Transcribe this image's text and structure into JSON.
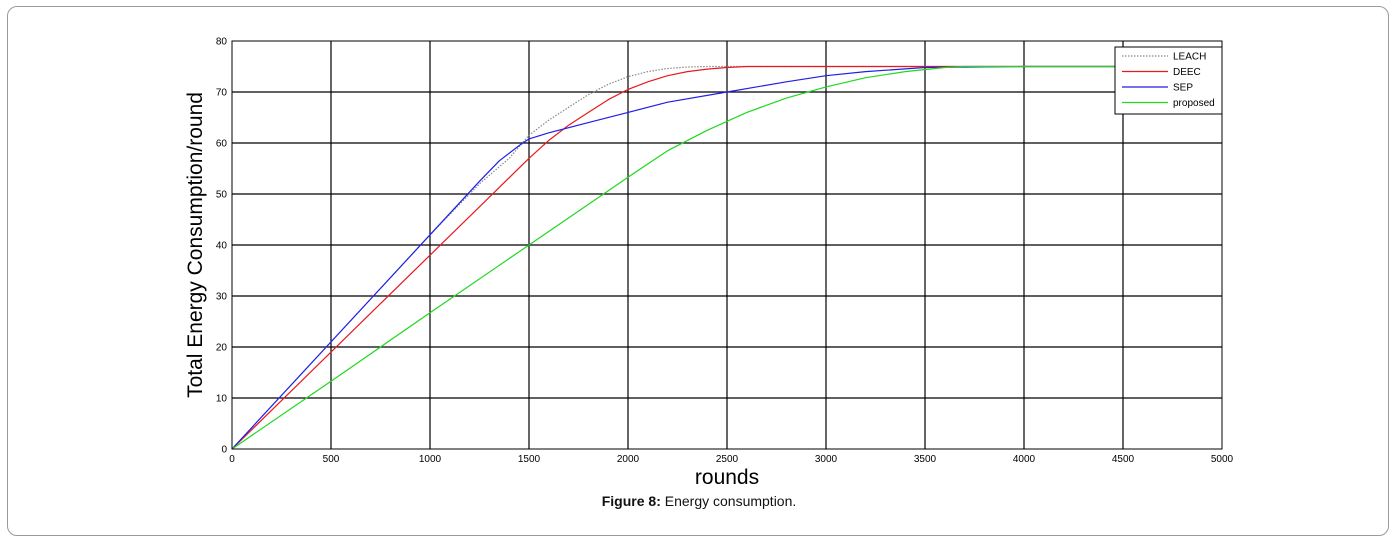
{
  "caption": {
    "label": "Figure 8:",
    "text": " Energy consumption."
  },
  "chart_data": {
    "type": "line",
    "title": "",
    "xlabel": "rounds",
    "ylabel": "Total Energy Consumption/round",
    "xlim": [
      0,
      5000
    ],
    "ylim": [
      0,
      80
    ],
    "xticks": [
      0,
      500,
      1000,
      1500,
      2000,
      2500,
      3000,
      3500,
      4000,
      4500,
      5000
    ],
    "yticks": [
      0,
      10,
      20,
      30,
      40,
      50,
      60,
      70,
      80
    ],
    "grid": true,
    "legend_position": "top-right",
    "series": [
      {
        "name": "LEACH",
        "color": "#888888",
        "style": "dotted",
        "x": [
          0,
          250,
          500,
          750,
          1000,
          1250,
          1400,
          1500,
          1600,
          1700,
          1800,
          1900,
          2000,
          2100,
          2200,
          2300,
          2400,
          2500,
          3000,
          3500,
          4000,
          4500,
          5000
        ],
        "y": [
          0,
          10.5,
          21,
          31.5,
          42,
          52,
          57,
          61.5,
          64.5,
          67,
          69.5,
          71.5,
          73,
          74,
          74.6,
          74.9,
          75,
          75,
          75,
          75,
          75,
          75,
          75
        ]
      },
      {
        "name": "DEEC",
        "color": "#e8191e",
        "style": "solid",
        "x": [
          0,
          250,
          500,
          750,
          1000,
          1250,
          1500,
          1600,
          1700,
          1800,
          1900,
          2000,
          2100,
          2200,
          2300,
          2400,
          2500,
          2600,
          3000,
          3500,
          4000,
          4500,
          5000
        ],
        "y": [
          0,
          9.5,
          19,
          28.5,
          38,
          47.5,
          57,
          60.5,
          63.5,
          66,
          68.5,
          70.5,
          72,
          73.2,
          74,
          74.5,
          74.8,
          75,
          75,
          75,
          75,
          75,
          75
        ]
      },
      {
        "name": "SEP",
        "color": "#1f1fe8",
        "style": "solid",
        "x": [
          0,
          250,
          500,
          750,
          1000,
          1250,
          1350,
          1450,
          1500,
          1600,
          1800,
          2000,
          2200,
          2500,
          2800,
          3000,
          3200,
          3500,
          4000,
          4500,
          5000
        ],
        "y": [
          0,
          10.5,
          21,
          31.5,
          42,
          52.5,
          56.5,
          59.5,
          60.8,
          62,
          64,
          66,
          68,
          70,
          72,
          73.2,
          74,
          74.8,
          75,
          75,
          75
        ]
      },
      {
        "name": "proposed",
        "color": "#1fd81f",
        "style": "solid",
        "x": [
          0,
          500,
          1000,
          1500,
          2000,
          2200,
          2400,
          2600,
          2800,
          3000,
          3200,
          3400,
          3600,
          3700,
          4000,
          4500,
          5000
        ],
        "y": [
          0,
          13.3,
          26.7,
          40,
          53.3,
          58.5,
          62.5,
          66,
          68.8,
          71,
          72.8,
          74,
          74.8,
          75,
          75,
          75,
          75
        ]
      }
    ]
  }
}
